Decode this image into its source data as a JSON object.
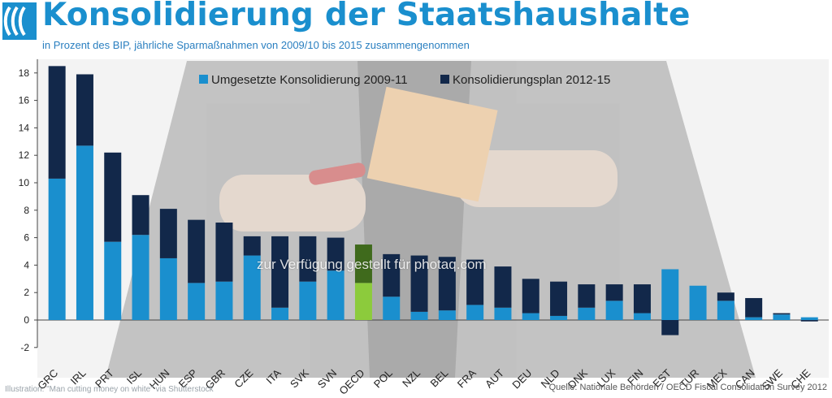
{
  "title": "Konsolidierung der Staatshaushalte",
  "subtitle": "in Prozent des BIP, jährliche Sparmaßnahmen von 2009/10 bis 2015 zusammengenommen",
  "footer": {
    "credit": "Illustration: \"Man cutting money on white\" via Shutterstock",
    "source": "Quelle:  Nationale Behörden / OECD Fiscal Consolidation Survey 2012"
  },
  "watermark": "zur Verfügung gestellt für photaq.com",
  "colors": {
    "title": "#1a8fce",
    "implemented": "#1a8fce",
    "plan": "#12284a",
    "oecd_implemented": "#8ccb3c",
    "oecd_plan": "#3f6a1c"
  },
  "chart_data": {
    "type": "bar",
    "stacked": true,
    "categories": [
      "GRC",
      "IRL",
      "PRT",
      "ISL",
      "HUN",
      "ESP",
      "GBR",
      "CZE",
      "ITA",
      "SVK",
      "SVN",
      "OECD",
      "POL",
      "NZL",
      "BEL",
      "FRA",
      "AUT",
      "DEU",
      "NLD",
      "DNK",
      "LUX",
      "FIN",
      "EST",
      "TUR",
      "MEX",
      "CAN",
      "SWE",
      "CHE"
    ],
    "series": [
      {
        "name": "Umgesetzte Konsolidierung 2009-11",
        "color": "#1a8fce",
        "values": [
          10.3,
          12.7,
          5.7,
          6.2,
          4.5,
          2.7,
          2.8,
          4.7,
          0.9,
          2.8,
          3.6,
          2.7,
          1.7,
          0.6,
          0.7,
          1.1,
          0.9,
          0.5,
          0.3,
          0.9,
          1.4,
          0.5,
          3.7,
          2.5,
          1.4,
          0.2,
          0.4,
          0.2
        ]
      },
      {
        "name": "Konsolidierungsplan 2012-15",
        "color": "#12284a",
        "values": [
          8.2,
          5.2,
          6.5,
          2.9,
          3.6,
          4.6,
          4.3,
          1.4,
          5.2,
          3.3,
          2.4,
          2.8,
          3.1,
          4.1,
          3.9,
          3.3,
          3.0,
          2.5,
          2.5,
          1.7,
          1.2,
          2.1,
          -1.1,
          0,
          0.6,
          1.4,
          0.1,
          -0.1
        ]
      }
    ],
    "highlight": "OECD",
    "ylim": [
      -2,
      19
    ],
    "yticks": [
      -2,
      0,
      2,
      4,
      6,
      8,
      10,
      12,
      14,
      16,
      18
    ],
    "legend": "top-center",
    "grid": false
  }
}
